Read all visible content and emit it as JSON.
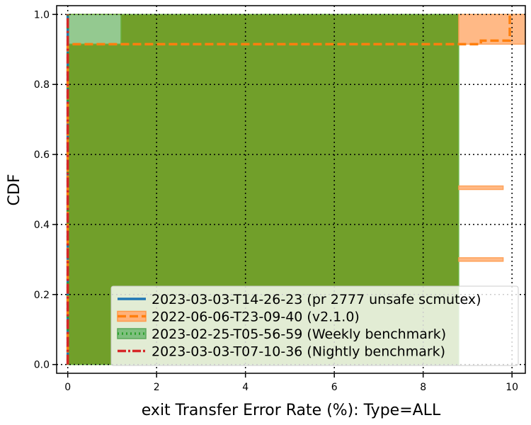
{
  "chart_data": {
    "type": "line",
    "title": "",
    "xlabel": "exit Transfer Error Rate (%): Type=ALL",
    "ylabel": "CDF",
    "xlim": [
      -0.25,
      10.3
    ],
    "ylim": [
      -0.025,
      1.025
    ],
    "xticks": [
      0,
      2,
      4,
      6,
      8,
      10
    ],
    "yticks": [
      0.0,
      0.2,
      0.4,
      0.6,
      0.8,
      1.0
    ],
    "xtick_labels": [
      "0",
      "2",
      "4",
      "6",
      "8",
      "10"
    ],
    "ytick_labels": [
      "0.0",
      "0.2",
      "0.4",
      "0.6",
      "0.8",
      "1.0"
    ],
    "grid": true,
    "legend_position": "lower-right",
    "series": [
      {
        "name": "2023-03-03-T14-26-23 (pr 2777 unsafe scmutex)",
        "color": "#1f77b4",
        "style": "solid",
        "x": [
          0,
          0
        ],
        "y": [
          0.0,
          1.0
        ]
      },
      {
        "name": "2022-06-06-T23-09-40 (v2.1.0)",
        "color": "#ff7f0e",
        "style": "dashed",
        "x": [
          0,
          0,
          9.3,
          9.3,
          9.95,
          9.95
        ],
        "y": [
          0.0,
          0.915,
          0.915,
          0.925,
          0.925,
          1.0
        ],
        "bands": [
          {
            "x0": 8.8,
            "x1": 10.3,
            "y0": 0.915,
            "y1": 1.0
          },
          {
            "x0": 8.8,
            "x1": 9.8,
            "y0": 0.5,
            "y1": 0.51
          },
          {
            "x0": 8.8,
            "x1": 9.8,
            "y0": 0.295,
            "y1": 0.305
          }
        ]
      },
      {
        "name": "2023-02-25-T05-56-59 (Weekly benchmark)",
        "color": "#2ca02c",
        "style": "dotted",
        "x": [
          0,
          0
        ],
        "y": [
          0.0,
          1.0
        ],
        "bands": [
          {
            "x0": 0,
            "x1": 8.8,
            "y0": 0.0,
            "y1": 1.0
          },
          {
            "x0": 0,
            "x1": 1.2,
            "y0": 0.915,
            "y1": 1.0
          }
        ]
      },
      {
        "name": "2023-03-03-T07-10-36 (Nightly benchmark)",
        "color": "#d62728",
        "style": "dashdot",
        "x": [
          0,
          0
        ],
        "y": [
          0.0,
          1.0
        ]
      }
    ]
  }
}
